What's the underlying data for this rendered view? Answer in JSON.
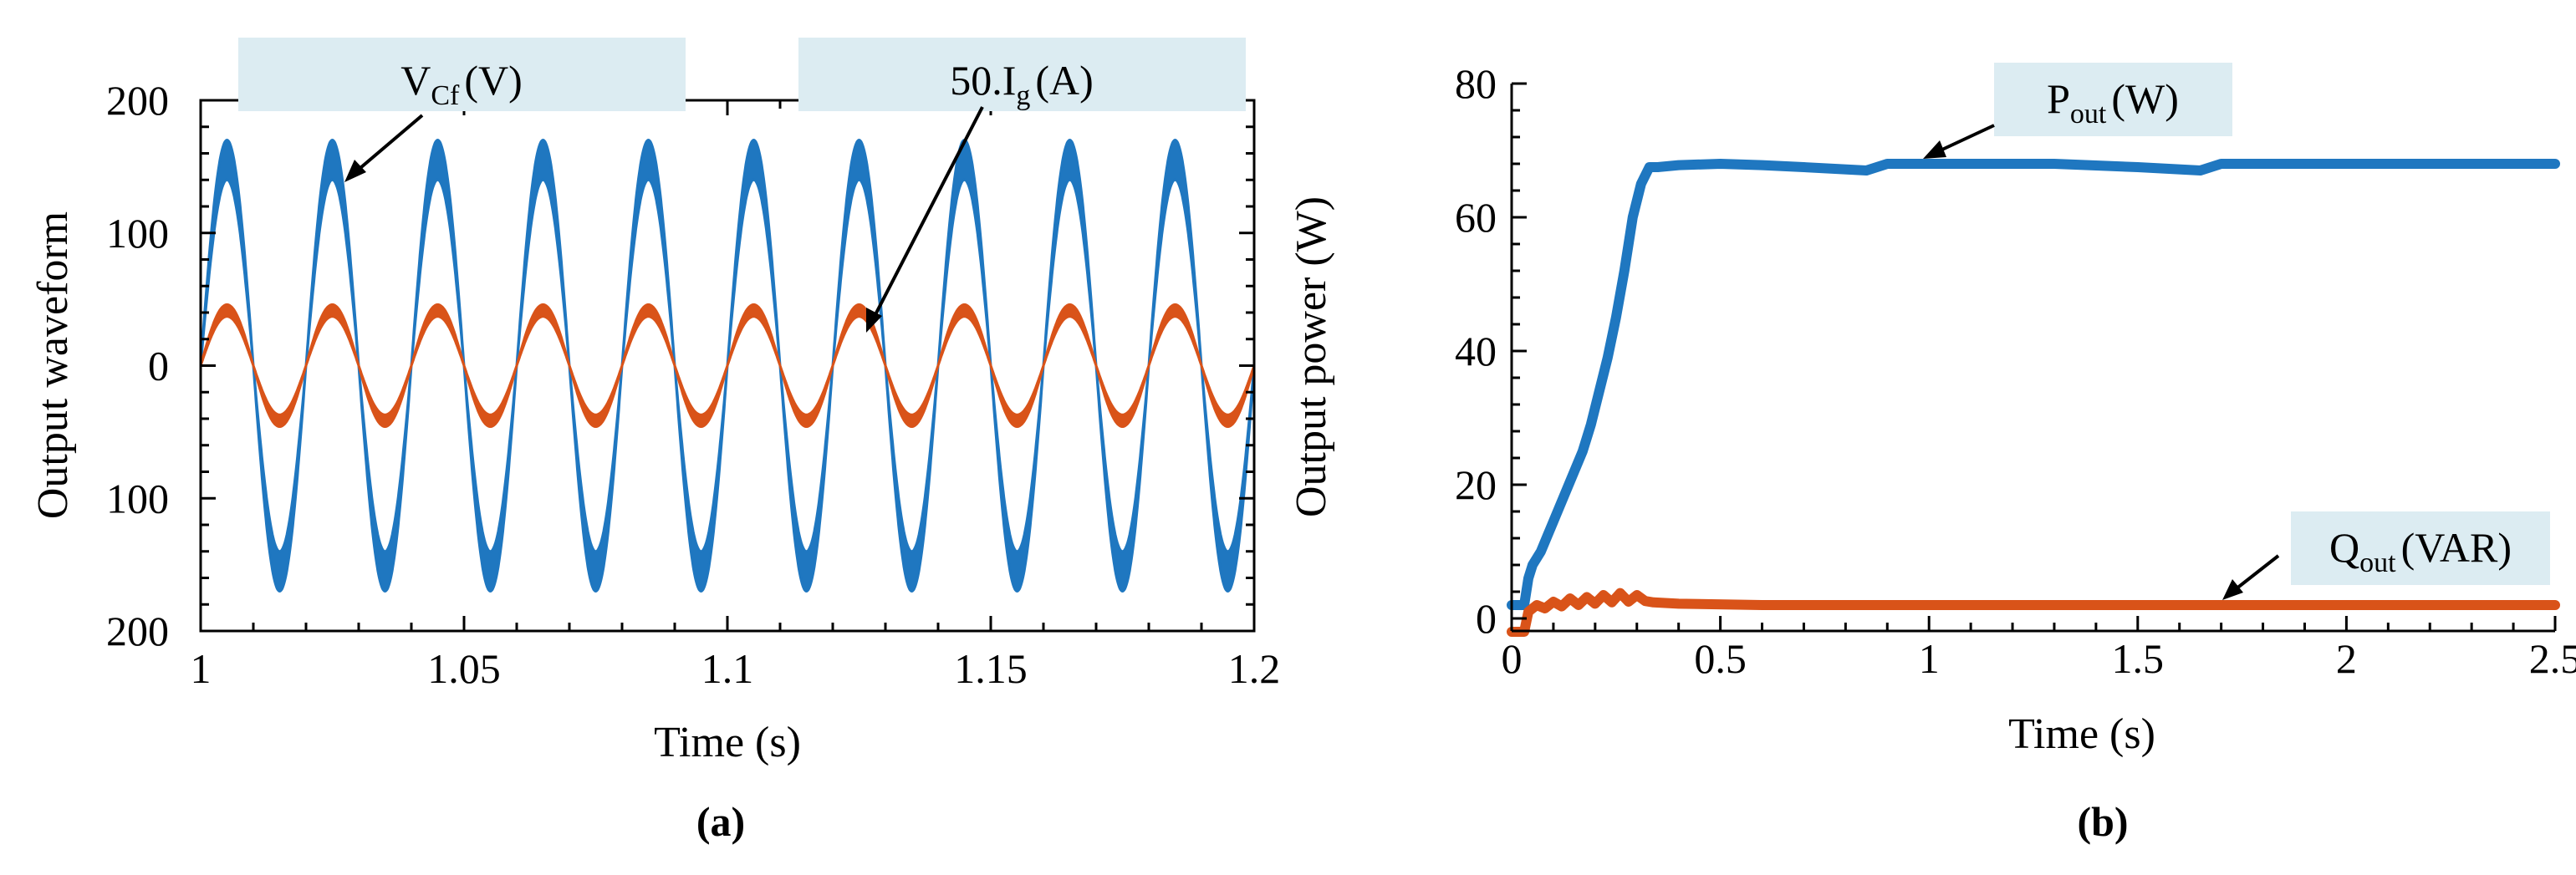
{
  "chart_data": [
    {
      "type": "line",
      "panel_label": "(a)",
      "xlabel": "Time (s)",
      "ylabel": "Output waveform",
      "xlim": [
        1,
        1.2
      ],
      "ylim": [
        -200,
        200
      ],
      "x_ticks": [
        1,
        1.05,
        1.1,
        1.15,
        1.2
      ],
      "x_tick_labels": [
        "1",
        "1.05",
        "1.1",
        "1.15",
        "1.2"
      ],
      "y_ticks": [
        200,
        100,
        0,
        -100,
        -200
      ],
      "y_tick_labels": [
        "200",
        "100",
        "0",
        "100",
        "200"
      ],
      "series": [
        {
          "name": "V_Cf (V)",
          "color": "#1f77c0",
          "frequency_hz": 50,
          "amplitude": 170,
          "ripple": 30
        },
        {
          "name": "50.I_g (A)",
          "color": "#d95319",
          "frequency_hz": 50,
          "amplitude": 46,
          "ripple": 9
        }
      ],
      "annotations": [
        {
          "id": "vcf",
          "base": "V",
          "sub": "Cf",
          "unit": "(V)",
          "series": "V_Cf (V)"
        },
        {
          "id": "ig",
          "base": "50.I",
          "sub": "g",
          "unit": "(A)",
          "series": "50.I_g (A)"
        }
      ],
      "box_color": "#dcecf2"
    },
    {
      "type": "line",
      "panel_label": "(b)",
      "xlabel": "Time (s)",
      "ylabel": "Output power (W)",
      "xlim": [
        0,
        2.5
      ],
      "ylim": [
        0,
        80
      ],
      "x_ticks": [
        0,
        0.5,
        1,
        1.5,
        2,
        2.5
      ],
      "x_tick_labels": [
        "0",
        "0.5",
        "1",
        "1.5",
        "2",
        "2.5"
      ],
      "y_ticks": [
        0,
        20,
        40,
        60,
        80
      ],
      "y_tick_labels": [
        "0",
        "20",
        "40",
        "60",
        "80"
      ],
      "series": [
        {
          "name": "P_out (W)",
          "color": "#1f77c0",
          "x": [
            0,
            0.03,
            0.04,
            0.05,
            0.07,
            0.09,
            0.11,
            0.13,
            0.15,
            0.17,
            0.19,
            0.21,
            0.23,
            0.25,
            0.27,
            0.29,
            0.31,
            0.33,
            0.35,
            0.4,
            0.5,
            0.6,
            0.7,
            0.85,
            0.9,
            1.0,
            1.3,
            1.5,
            1.65,
            1.7,
            2.0,
            2.5
          ],
          "y": [
            2,
            2,
            6,
            8,
            10,
            13,
            16,
            19,
            22,
            25,
            29,
            34,
            39,
            45,
            52,
            60,
            65,
            67.5,
            67.5,
            67.8,
            68,
            67.8,
            67.5,
            67,
            68,
            68,
            68,
            67.5,
            67,
            68,
            68,
            68
          ]
        },
        {
          "name": "Q_out (VAR)",
          "color": "#d95319",
          "x": [
            0,
            0.03,
            0.04,
            0.06,
            0.08,
            0.1,
            0.12,
            0.14,
            0.16,
            0.18,
            0.2,
            0.22,
            0.24,
            0.26,
            0.28,
            0.3,
            0.32,
            0.34,
            0.4,
            0.6,
            1.0,
            1.5,
            2.0,
            2.5
          ],
          "y": [
            -2,
            -2,
            1,
            2,
            1.5,
            2.5,
            1.8,
            3,
            2,
            3.2,
            2.2,
            3.5,
            2.4,
            3.8,
            2.5,
            3.5,
            2.6,
            2.4,
            2.2,
            2,
            2,
            2,
            2,
            2
          ]
        }
      ],
      "annotations": [
        {
          "id": "pout",
          "base": "P",
          "sub": "out",
          "unit": "(W)",
          "series": "P_out (W)"
        },
        {
          "id": "qout",
          "base": "Q",
          "sub": "out",
          "unit": "(VAR)",
          "series": "Q_out (VAR)"
        }
      ],
      "box_color": "#dcecf2"
    }
  ]
}
